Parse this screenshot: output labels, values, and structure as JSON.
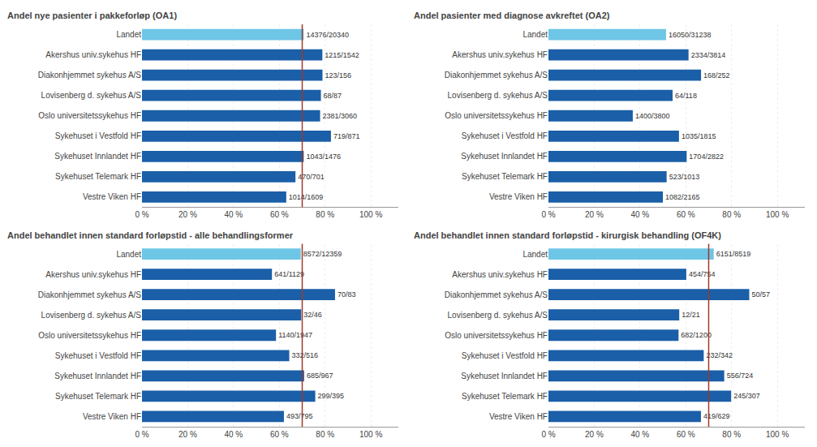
{
  "chart_data": [
    {
      "type": "bar",
      "orientation": "horizontal",
      "title": "Andel nye pasienter i pakkeforløp (OA1)",
      "categories": [
        "Landet",
        "Akershus univ.sykehus HF",
        "Diakonhjemmet sykehus A/S",
        "Lovisenberg d. sykehus A/S",
        "Oslo universitetssykehus HF",
        "Sykehuset i Vestfold HF",
        "Sykehuset Innlandet HF",
        "Sykehuset Telemark HF",
        "Vestre Viken HF"
      ],
      "values": [
        70.6785,
        78.7938,
        78.8462,
        78.1609,
        77.8105,
        82.5488,
        70.664,
        67.0471,
        63.0205
      ],
      "value_labels": [
        "14376/20340",
        "1215/1542",
        "123/156",
        "68/87",
        "2381/3060",
        "719/871",
        "1043/1476",
        "470/701",
        "1014/1609"
      ],
      "data_labels": true,
      "colors": [
        "#6ec6e6",
        "#1a5fa8",
        "#1a5fa8",
        "#1a5fa8",
        "#1a5fa8",
        "#1a5fa8",
        "#1a5fa8",
        "#1a5fa8",
        "#1a5fa8"
      ],
      "xlim": [
        0,
        112
      ],
      "xticks": [
        {
          "value": 0,
          "label": "0 %"
        },
        {
          "value": 20,
          "label": "20 %"
        },
        {
          "value": 40,
          "label": "40 %"
        },
        {
          "value": 60,
          "label": "60 %"
        },
        {
          "value": 80,
          "label": "80 %"
        },
        {
          "value": 100,
          "label": "100 %"
        }
      ],
      "grid": true,
      "ref_line": {
        "value": 70,
        "color": "#9e3a2a"
      }
    },
    {
      "type": "bar",
      "orientation": "horizontal",
      "title": "Andel pasienter med diagnose avkreftet (OA2)",
      "categories": [
        "Landet",
        "Akershus univ.sykehus HF",
        "Diakonhjemmet sykehus A/S",
        "Lovisenberg d. sykehus A/S",
        "Oslo universitetssykehus HF",
        "Sykehuset i Vestfold HF",
        "Sykehuset Innlandet HF",
        "Sykehuset Telemark HF",
        "Vestre Viken HF"
      ],
      "values": [
        51.3797,
        61.1956,
        66.6667,
        54.2373,
        36.8421,
        57.0248,
        60.3827,
        51.6288,
        49.9769
      ],
      "value_labels": [
        "16050/31238",
        "2334/3814",
        "168/252",
        "64/118",
        "1400/3800",
        "1035/1815",
        "1704/2822",
        "523/1013",
        "1082/2165"
      ],
      "data_labels": true,
      "colors": [
        "#6ec6e6",
        "#1a5fa8",
        "#1a5fa8",
        "#1a5fa8",
        "#1a5fa8",
        "#1a5fa8",
        "#1a5fa8",
        "#1a5fa8",
        "#1a5fa8"
      ],
      "xlim": [
        0,
        112
      ],
      "xticks": [
        {
          "value": 0,
          "label": "0 %"
        },
        {
          "value": 20,
          "label": "20 %"
        },
        {
          "value": 40,
          "label": "40 %"
        },
        {
          "value": 60,
          "label": "60 %"
        },
        {
          "value": 80,
          "label": "80 %"
        },
        {
          "value": 100,
          "label": "100 %"
        }
      ],
      "grid": true
    },
    {
      "type": "bar",
      "orientation": "horizontal",
      "title": "Andel behandlet innen standard forløpstid - alle behandlingsformer",
      "categories": [
        "Landet",
        "Akershus univ.sykehus HF",
        "Diakonhjemmet sykehus A/S",
        "Lovisenberg d. sykehus A/S",
        "Oslo universitetssykehus HF",
        "Sykehuset i Vestfold HF",
        "Sykehuset Innlandet HF",
        "Sykehuset Telemark HF",
        "Vestre Viken HF"
      ],
      "values": [
        69.3584,
        56.7759,
        84.3373,
        69.5652,
        58.5516,
        64.3411,
        70.8376,
        75.6962,
        62.0126
      ],
      "value_labels": [
        "8572/12359",
        "641/1129",
        "70/83",
        "32/46",
        "1140/1947",
        "332/516",
        "685/967",
        "299/395",
        "493/795"
      ],
      "data_labels": true,
      "colors": [
        "#6ec6e6",
        "#1a5fa8",
        "#1a5fa8",
        "#1a5fa8",
        "#1a5fa8",
        "#1a5fa8",
        "#1a5fa8",
        "#1a5fa8",
        "#1a5fa8"
      ],
      "xlim": [
        0,
        112
      ],
      "xticks": [
        {
          "value": 0,
          "label": "0 %"
        },
        {
          "value": 20,
          "label": "20 %"
        },
        {
          "value": 40,
          "label": "40 %"
        },
        {
          "value": 60,
          "label": "60 %"
        },
        {
          "value": 80,
          "label": "80 %"
        },
        {
          "value": 100,
          "label": "100 %"
        }
      ],
      "grid": true,
      "ref_line": {
        "value": 70,
        "color": "#9e3a2a"
      }
    },
    {
      "type": "bar",
      "orientation": "horizontal",
      "title": "Andel behandlet innen standard forløpstid - kirurgisk behandling (OF4K)",
      "categories": [
        "Landet",
        "Akershus univ.sykehus HF",
        "Diakonhjemmet sykehus A/S",
        "Lovisenberg d. sykehus A/S",
        "Oslo universitetssykehus HF",
        "Sykehuset i Vestfold HF",
        "Sykehuset Innlandet HF",
        "Sykehuset Telemark HF",
        "Vestre Viken HF"
      ],
      "values": [
        72.2033,
        60.2122,
        87.7193,
        57.1429,
        56.8333,
        67.8363,
        76.7956,
        79.8046,
        66.6137
      ],
      "value_labels": [
        "6151/8519",
        "454/754",
        "50/57",
        "12/21",
        "682/1200",
        "232/342",
        "556/724",
        "245/307",
        "419/629"
      ],
      "data_labels": true,
      "colors": [
        "#6ec6e6",
        "#1a5fa8",
        "#1a5fa8",
        "#1a5fa8",
        "#1a5fa8",
        "#1a5fa8",
        "#1a5fa8",
        "#1a5fa8",
        "#1a5fa8"
      ],
      "xlim": [
        0,
        112
      ],
      "xticks": [
        {
          "value": 0,
          "label": "0 %"
        },
        {
          "value": 20,
          "label": "20 %"
        },
        {
          "value": 40,
          "label": "40 %"
        },
        {
          "value": 60,
          "label": "60 %"
        },
        {
          "value": 80,
          "label": "80 %"
        },
        {
          "value": 100,
          "label": "100 %"
        }
      ],
      "grid": true,
      "ref_line": {
        "value": 70,
        "color": "#9e3a2a"
      }
    }
  ]
}
